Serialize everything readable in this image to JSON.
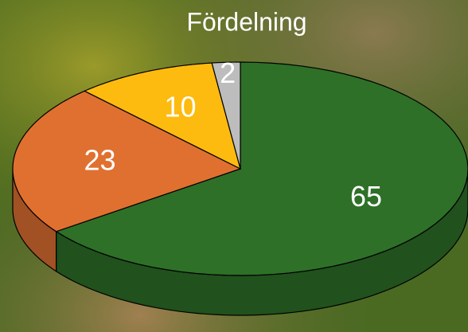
{
  "chart_data": {
    "type": "pie",
    "title": "Fördelning",
    "values": [
      65,
      23,
      10,
      2
    ],
    "colors": [
      "#2e7028",
      "#e07030",
      "#fdbb10",
      "#bdbdbd"
    ]
  }
}
